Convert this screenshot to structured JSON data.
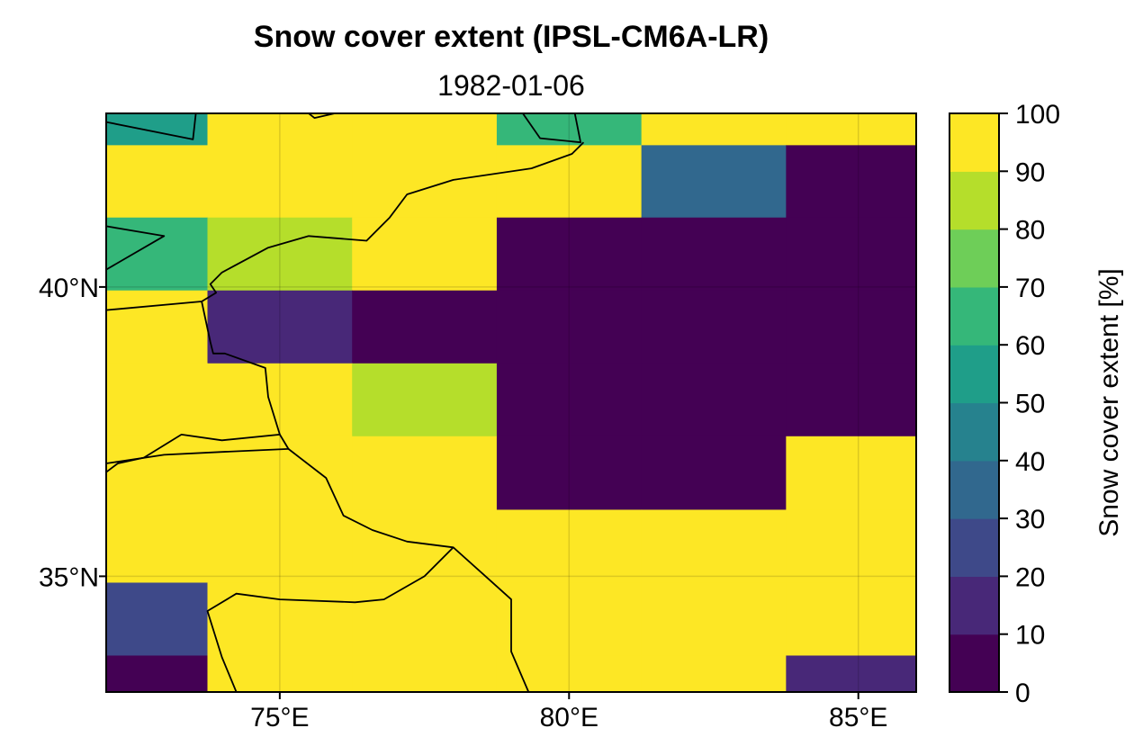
{
  "chart_data": {
    "type": "heatmap",
    "title": "Snow cover extent (IPSL-CM6A-LR)",
    "subtitle": "1982-01-06",
    "x_ticks": [
      {
        "value": 75,
        "label": "75°E"
      },
      {
        "value": 80,
        "label": "80°E"
      },
      {
        "value": 85,
        "label": "85°E"
      }
    ],
    "y_ticks": [
      {
        "value": 40,
        "label": "40°N"
      },
      {
        "value": 35,
        "label": "35°N"
      }
    ],
    "xlim": [
      72,
      86
    ],
    "ylim": [
      33,
      43
    ],
    "grid": true,
    "x_edges": [
      72.0,
      73.75,
      76.25,
      78.75,
      81.25,
      83.75,
      86.0
    ],
    "y_edges": [
      43.0,
      42.45,
      41.2,
      39.94,
      38.68,
      37.42,
      36.15,
      34.89,
      33.63,
      33.0
    ],
    "values": [
      [
        50,
        100,
        100,
        60,
        100,
        100
      ],
      [
        100,
        100,
        100,
        100,
        30,
        0
      ],
      [
        60,
        80,
        90,
        0,
        0,
        0
      ],
      [
        100,
        10,
        0,
        0,
        0,
        0
      ],
      [
        100,
        100,
        80,
        0,
        0,
        0
      ],
      [
        100,
        100,
        100,
        0,
        0,
        100
      ],
      [
        100,
        100,
        100,
        100,
        100,
        100
      ],
      [
        20,
        100,
        100,
        100,
        100,
        100
      ],
      [
        0,
        100,
        100,
        100,
        100,
        10
      ]
    ],
    "colorbar": {
      "label": "Snow cover extent [%]",
      "levels": [
        0,
        10,
        20,
        30,
        40,
        50,
        60,
        70,
        80,
        90,
        100
      ],
      "colors": [
        "#440154",
        "#482878",
        "#3e4989",
        "#31688e",
        "#26828e",
        "#1f9e89",
        "#35b779",
        "#6ece58",
        "#b5de2b",
        "#fde725"
      ],
      "tick_labels": [
        "0",
        "10",
        "20",
        "30",
        "40",
        "50",
        "60",
        "70",
        "80",
        "90",
        "100"
      ]
    },
    "coastlines": [
      [
        [
          72.0,
          42.85
        ],
        [
          73.5,
          42.55
        ],
        [
          73.55,
          43.0
        ]
      ],
      [
        [
          75.5,
          43.0
        ],
        [
          75.6,
          42.92
        ],
        [
          75.95,
          43.0
        ]
      ],
      [
        [
          72.0,
          41.05
        ],
        [
          73.0,
          40.88
        ],
        [
          72.0,
          40.3
        ]
      ],
      [
        [
          79.2,
          43.0
        ],
        [
          79.5,
          42.57
        ],
        [
          80.2,
          42.5
        ],
        [
          80.1,
          43.0
        ]
      ],
      [
        [
          80.25,
          42.5
        ],
        [
          80.05,
          42.3
        ],
        [
          79.35,
          42.05
        ],
        [
          78.0,
          41.85
        ],
        [
          77.2,
          41.6
        ],
        [
          76.9,
          41.2
        ],
        [
          76.5,
          40.8
        ],
        [
          75.5,
          40.88
        ],
        [
          74.8,
          40.68
        ],
        [
          74.0,
          40.25
        ],
        [
          73.8,
          40.05
        ],
        [
          73.9,
          39.9
        ],
        [
          73.65,
          39.75
        ],
        [
          72.0,
          39.6
        ]
      ],
      [
        [
          73.65,
          39.75
        ],
        [
          73.8,
          39.05
        ],
        [
          73.85,
          38.85
        ],
        [
          74.05,
          38.85
        ],
        [
          74.75,
          38.6
        ],
        [
          74.8,
          38.1
        ],
        [
          75.0,
          37.45
        ],
        [
          74.0,
          37.35
        ],
        [
          73.3,
          37.45
        ],
        [
          72.65,
          37.05
        ],
        [
          72.2,
          36.95
        ],
        [
          72.0,
          36.8
        ]
      ],
      [
        [
          75.0,
          37.45
        ],
        [
          75.15,
          37.2
        ],
        [
          74.0,
          37.15
        ],
        [
          73.0,
          37.1
        ],
        [
          72.0,
          36.95
        ]
      ],
      [
        [
          75.15,
          37.2
        ],
        [
          75.8,
          36.7
        ],
        [
          76.1,
          36.05
        ],
        [
          76.6,
          35.8
        ],
        [
          77.2,
          35.6
        ],
        [
          78.0,
          35.5
        ],
        [
          78.5,
          35.05
        ],
        [
          79.0,
          34.6
        ],
        [
          79.0,
          33.7
        ],
        [
          79.3,
          33.0
        ]
      ],
      [
        [
          78.0,
          35.5
        ],
        [
          77.5,
          35.0
        ],
        [
          76.8,
          34.6
        ],
        [
          76.3,
          34.55
        ],
        [
          75.0,
          34.6
        ],
        [
          74.25,
          34.7
        ],
        [
          73.75,
          34.4
        ],
        [
          74.0,
          33.6
        ],
        [
          74.25,
          33.0
        ]
      ]
    ]
  }
}
